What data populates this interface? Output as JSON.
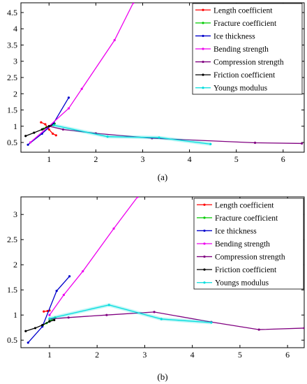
{
  "chart_data": [
    {
      "type": "line",
      "caption": "(a)",
      "xlim": [
        0.4,
        6.45
      ],
      "ylim": [
        0.2,
        4.8
      ],
      "xticks": [
        1,
        2,
        3,
        4,
        5,
        6
      ],
      "yticks": [
        0.5,
        1,
        1.5,
        2,
        2.5,
        3,
        3.5,
        4,
        4.5
      ],
      "grid": false,
      "legend_position": "top-right",
      "series": [
        {
          "name": "Length coefficient",
          "color": "#ff0000",
          "x": [
            0.83,
            0.92,
            1.0,
            1.08,
            1.15
          ],
          "y": [
            1.12,
            1.06,
            0.9,
            0.77,
            0.72
          ]
        },
        {
          "name": "Fracture coefficient",
          "color": "#00cc00",
          "x": [
            0.88,
            0.94,
            1.0,
            1.06,
            1.12
          ],
          "y": [
            0.92,
            0.96,
            1.0,
            1.04,
            1.08
          ]
        },
        {
          "name": "Ice thickness",
          "color": "#0000cc",
          "x": [
            0.55,
            0.85,
            1.1,
            1.42
          ],
          "y": [
            0.43,
            0.77,
            1.1,
            1.88
          ]
        },
        {
          "name": "Bending strength",
          "color": "#ee00ee",
          "x": [
            0.6,
            1.0,
            1.42,
            1.7,
            2.4,
            2.8
          ],
          "y": [
            0.5,
            1.0,
            1.55,
            2.15,
            3.65,
            4.8
          ]
        },
        {
          "name": "Compression strength",
          "color": "#800080",
          "x": [
            1.0,
            1.3,
            2.0,
            3.2,
            5.4,
            6.4
          ],
          "y": [
            1.0,
            0.9,
            0.78,
            0.63,
            0.49,
            0.47
          ]
        },
        {
          "name": "Friction coefficient",
          "color": "#000000",
          "x": [
            0.5,
            0.68,
            0.85,
            1.0,
            1.1
          ],
          "y": [
            0.7,
            0.8,
            0.9,
            1.0,
            1.05
          ]
        },
        {
          "name": "Youngs modulus",
          "color": "#00dddd",
          "x": [
            1.1,
            2.25,
            3.35,
            4.45
          ],
          "y": [
            1.03,
            0.68,
            0.65,
            0.45
          ]
        }
      ]
    },
    {
      "type": "line",
      "caption": "(b)",
      "xlim": [
        0.4,
        6.35
      ],
      "ylim": [
        0.35,
        3.35
      ],
      "xticks": [
        1,
        2,
        3,
        4,
        5,
        6
      ],
      "yticks": [
        0.5,
        1,
        1.5,
        2,
        2.5,
        3
      ],
      "grid": false,
      "legend_position": "top-right",
      "series": [
        {
          "name": "Length coefficient",
          "color": "#ff0000",
          "x": [
            0.88,
            0.96,
            1.0
          ],
          "y": [
            1.07,
            1.08,
            1.09
          ]
        },
        {
          "name": "Fracture coefficient",
          "color": "#00cc00",
          "x": [
            0.86,
            0.94,
            1.0,
            1.06,
            1.12
          ],
          "y": [
            0.8,
            0.84,
            0.88,
            0.91,
            0.95
          ]
        },
        {
          "name": "Ice thickness",
          "color": "#0000cc",
          "x": [
            0.55,
            0.85,
            1.15,
            1.42
          ],
          "y": [
            0.45,
            0.77,
            1.48,
            1.77
          ]
        },
        {
          "name": "Bending strength",
          "color": "#ee00ee",
          "x": [
            1.0,
            1.3,
            1.7,
            2.35,
            2.85
          ],
          "y": [
            1.0,
            1.4,
            1.87,
            2.72,
            3.35
          ]
        },
        {
          "name": "Compression strength",
          "color": "#800080",
          "x": [
            1.0,
            1.4,
            2.2,
            3.2,
            4.4,
            5.4,
            6.35
          ],
          "y": [
            0.92,
            0.95,
            1.0,
            1.06,
            0.86,
            0.71,
            0.74
          ]
        },
        {
          "name": "Friction coefficient",
          "color": "#000000",
          "x": [
            0.5,
            0.7,
            0.85,
            1.0,
            1.1
          ],
          "y": [
            0.68,
            0.74,
            0.8,
            0.87,
            0.9
          ]
        },
        {
          "name": "Youngs modulus",
          "color": "#00dddd",
          "x": [
            1.0,
            2.25,
            3.35,
            4.4
          ],
          "y": [
            0.93,
            1.2,
            0.92,
            0.85
          ]
        }
      ]
    }
  ]
}
